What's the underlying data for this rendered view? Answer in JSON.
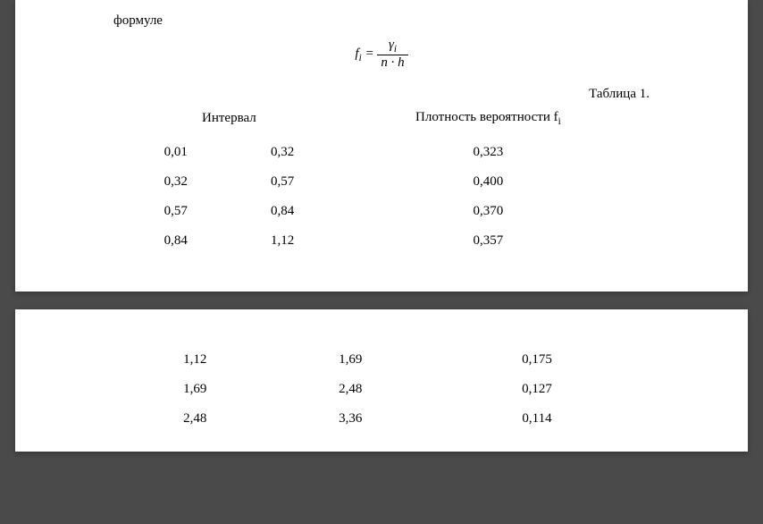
{
  "intro": "формуле",
  "formula": {
    "left": "f",
    "left_sub": "i",
    "numerator": "γ",
    "numerator_sub": "i",
    "denom_left": "n",
    "denom_mid": " · ",
    "denom_right": "h"
  },
  "table_caption": "Таблица 1.",
  "headers": {
    "interval": "Интервал",
    "density": "Плотность вероятности  f",
    "density_sub": "i"
  },
  "rows_page1": [
    {
      "a": "0,01",
      "b": "0,32",
      "f": "0,323"
    },
    {
      "a": "0,32",
      "b": "0,57",
      "f": "0,400"
    },
    {
      "a": "0,57",
      "b": "0,84",
      "f": "0,370"
    },
    {
      "a": "0,84",
      "b": "1,12",
      "f": "0,357"
    }
  ],
  "rows_page2": [
    {
      "a": "1,12",
      "b": "1,69",
      "f": "0,175"
    },
    {
      "a": "1,69",
      "b": "2,48",
      "f": "0,127"
    },
    {
      "a": "2,48",
      "b": "3,36",
      "f": "0,114"
    }
  ]
}
